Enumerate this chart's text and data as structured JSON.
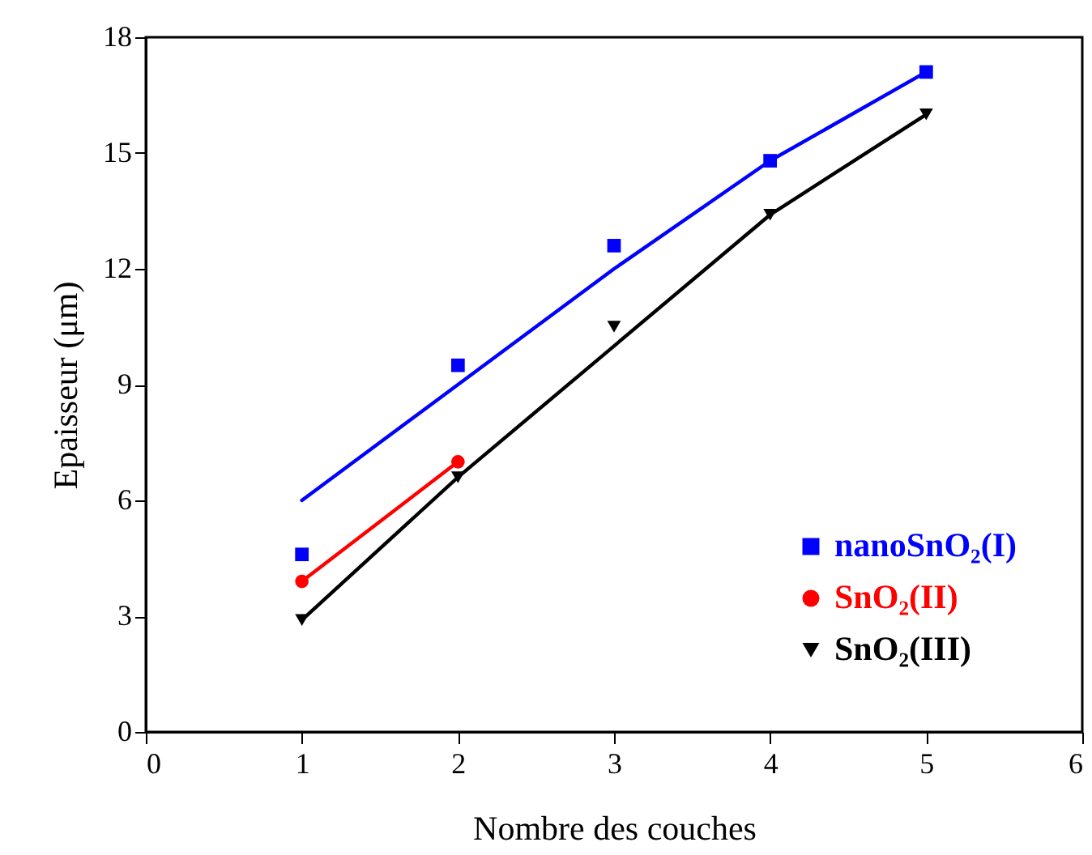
{
  "chart_data": {
    "type": "scatter",
    "xlabel": "Nombre des couches",
    "ylabel": "Epaisseur (μm)",
    "x": [
      1,
      2,
      3,
      4,
      5
    ],
    "series": [
      {
        "name": "nanoSnO₂(I)",
        "type": "scatter",
        "color": "#0000ff",
        "marker": "square",
        "values": [
          4.6,
          9.5,
          12.6,
          14.8,
          17.1
        ]
      },
      {
        "type": "line",
        "color": "#0000ff",
        "marker": "none",
        "values": [
          6.0,
          9.0,
          12.0,
          14.8,
          17.1
        ]
      },
      {
        "name": "SnO₂(II)",
        "type": "line",
        "color": "#ff0000",
        "marker": "circle",
        "x": [
          1,
          2
        ],
        "values": [
          3.9,
          7.0
        ]
      },
      {
        "name": "SnO₂(III)",
        "type": "scatter",
        "color": "#000000",
        "marker": "triangle",
        "values": [
          2.9,
          6.6,
          10.5,
          13.4,
          16.0
        ]
      },
      {
        "type": "line",
        "color": "#000000",
        "marker": "none",
        "values": [
          2.9,
          6.6,
          10.0,
          13.4,
          16.0
        ]
      }
    ],
    "xlim": [
      0,
      6
    ],
    "xticks": [
      0,
      1,
      2,
      3,
      4,
      5,
      6
    ],
    "ylim": [
      0,
      18
    ],
    "yticks": [
      0,
      3,
      6,
      9,
      12,
      15,
      18
    ],
    "grid": false,
    "legend": "bottom right",
    "line_style": "solid"
  }
}
